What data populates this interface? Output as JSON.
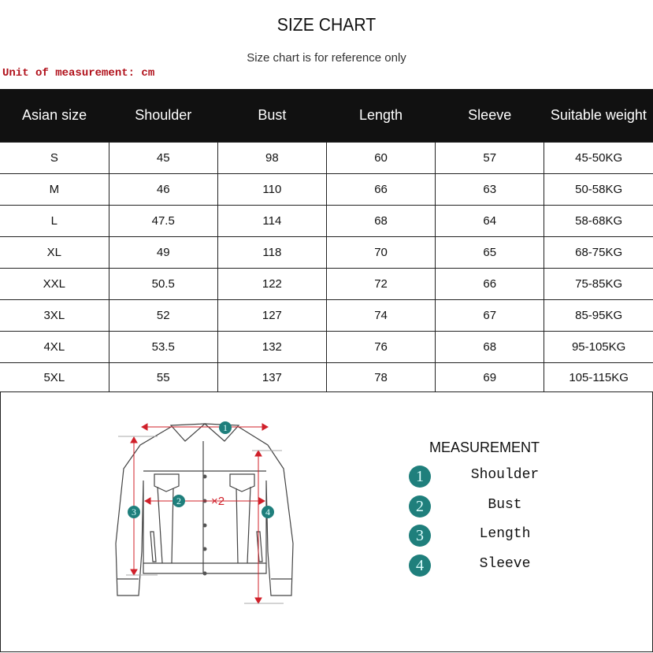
{
  "title": "SIZE CHART",
  "subtitle": "Size chart is for reference only",
  "unit": "Unit of measurement: cm",
  "table": {
    "headers": [
      "Asian size",
      "Shoulder",
      "Bust",
      "Length",
      "Sleeve",
      "Suitable weight"
    ],
    "rows": [
      [
        "S",
        "45",
        "98",
        "60",
        "57",
        "45-50KG"
      ],
      [
        "M",
        "46",
        "110",
        "66",
        "63",
        "50-58KG"
      ],
      [
        "L",
        "47.5",
        "114",
        "68",
        "64",
        "58-68KG"
      ],
      [
        "XL",
        "49",
        "118",
        "70",
        "65",
        "68-75KG"
      ],
      [
        "XXL",
        "50.5",
        "122",
        "72",
        "66",
        "75-85KG"
      ],
      [
        "3XL",
        "52",
        "127",
        "74",
        "67",
        "85-95KG"
      ],
      [
        "4XL",
        "53.5",
        "132",
        "76",
        "68",
        "95-105KG"
      ],
      [
        "5XL",
        "55",
        "137",
        "78",
        "69",
        "105-115KG"
      ]
    ]
  },
  "diagram": {
    "bust_multiplier": "×2",
    "badge_color": "#1f7f7c",
    "arrow_color": "#d0202a",
    "legend_title": "MEASUREMENT",
    "legend": [
      {
        "num": "1",
        "label": "Shoulder"
      },
      {
        "num": "2",
        "label": "Bust"
      },
      {
        "num": "3",
        "label": "Length"
      },
      {
        "num": "4",
        "label": "Sleeve"
      }
    ]
  }
}
